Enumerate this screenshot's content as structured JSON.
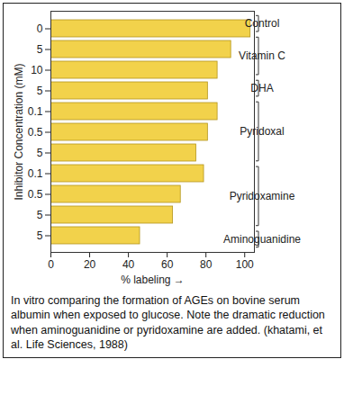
{
  "chart_data": {
    "type": "bar",
    "orientation": "horizontal",
    "caption": "In vitro comparing the formation of AGEs on bovine serum albumin when exposed to glucose. Note the dramatic reduction when aminoguanidine or pyridoxamine are added. (khatami, et al. Life Sciences, 1988)",
    "xlabel": "% labeling",
    "ylabel": "Inhibitor Concentration (mM)",
    "categories": [
      "0",
      "5",
      "10",
      "5",
      "0.1",
      "0.5",
      "5",
      "0.1",
      "0.5",
      "5",
      "5"
    ],
    "groups": [
      "Control",
      "Vitamin C",
      "Vitamin C",
      "DHA",
      "Pyridoxal",
      "Pyridoxal",
      "Pyridoxal",
      "Pyridoxamine",
      "Pyridoxamine",
      "Pyridoxamine",
      "Aminoguanidine"
    ],
    "values": [
      103,
      93,
      86,
      81,
      86,
      81,
      75,
      79,
      67,
      63,
      46
    ],
    "color": "#f2d24b",
    "xlim": [
      0,
      105
    ],
    "xticks": [
      0,
      20,
      40,
      60,
      80,
      100
    ],
    "grid": false
  }
}
